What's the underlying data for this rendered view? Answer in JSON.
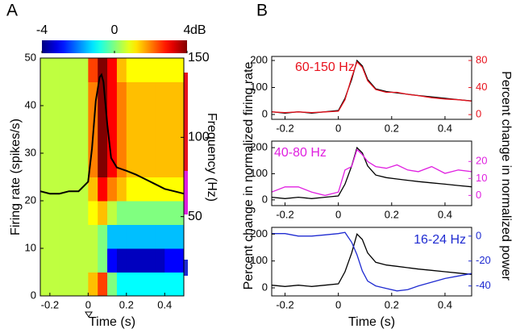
{
  "chart_data": [
    {
      "type": "heatmap",
      "panel": "A",
      "xlabel": "Time (s)",
      "ylabel": "Firing rate (spikes/s)",
      "y2label": "Frequency (Hz)",
      "xlim": [
        -0.25,
        0.5
      ],
      "xticks": [
        -0.2,
        0,
        0.2,
        0.4
      ],
      "ylim": [
        0,
        50
      ],
      "yticks": [
        0,
        10,
        20,
        30,
        40,
        50
      ],
      "y2lim": [
        0,
        150
      ],
      "y2ticks": [
        50,
        100,
        150
      ],
      "colormap": "jet",
      "heatmap": {
        "x_edges": [
          -0.25,
          -0.2,
          -0.15,
          -0.1,
          -0.05,
          0,
          0.05,
          0.1,
          0.15,
          0.2,
          0.25,
          0.3,
          0.35,
          0.4,
          0.45,
          0.5
        ],
        "y_edges": [
          0,
          15,
          30,
          45,
          60,
          75,
          90,
          105,
          120,
          135,
          150
        ],
        "values": [
          [
            0.5,
            0.5,
            0.5,
            0.5,
            0.5,
            1.5,
            2.5,
            0,
            -1,
            -1,
            -1,
            -1,
            -1,
            -1,
            -1
          ],
          [
            0.5,
            0.5,
            0.5,
            0.5,
            0.5,
            0.5,
            0,
            -3,
            -3.5,
            -3.5,
            -3.5,
            -3.5,
            -3.5,
            -3,
            -3
          ],
          [
            0.5,
            0.5,
            0.5,
            0.5,
            0.5,
            0.5,
            0,
            -1.5,
            -1.5,
            -1.5,
            -1.5,
            -1.5,
            -1.5,
            -1.5,
            -1.5
          ],
          [
            0.5,
            0.5,
            0.5,
            0.5,
            0.5,
            1,
            1.5,
            0.5,
            0,
            0,
            0,
            0,
            0,
            0,
            0
          ],
          [
            0.5,
            0.5,
            0.5,
            0.5,
            0.5,
            1.5,
            3,
            2,
            1.5,
            1,
            1,
            1,
            1,
            1,
            1
          ],
          [
            0.5,
            0.5,
            0.5,
            0.5,
            0.5,
            2,
            4,
            3,
            2,
            1.5,
            1.5,
            1.5,
            1.5,
            1.5,
            1.5
          ],
          [
            0.5,
            0.5,
            0.5,
            0.5,
            0.5,
            2,
            4,
            3,
            2,
            1.5,
            1.5,
            1.5,
            1.5,
            1.5,
            1.5
          ],
          [
            0.5,
            0.5,
            0.5,
            0.5,
            0.5,
            2,
            4,
            3,
            2,
            1.5,
            1.5,
            1.5,
            1.5,
            1.5,
            1.5
          ],
          [
            0.5,
            0.5,
            0.5,
            0.5,
            0.5,
            2,
            4,
            3,
            2,
            1.5,
            1.5,
            1.5,
            1.5,
            1.5,
            1.5
          ],
          [
            0.5,
            0.5,
            0.5,
            0.5,
            0.5,
            2.5,
            4,
            3,
            1.5,
            1,
            1,
            1,
            1,
            1,
            1
          ]
        ],
        "clim": [
          -4,
          4
        ],
        "cticks": [
          -4,
          0,
          4
        ],
        "clabel": "dB"
      },
      "series": [
        {
          "color": "#000000",
          "x": [
            -0.25,
            -0.2,
            -0.15,
            -0.1,
            -0.05,
            0,
            0.02,
            0.04,
            0.06,
            0.07,
            0.08,
            0.1,
            0.12,
            0.15,
            0.2,
            0.25,
            0.3,
            0.35,
            0.4,
            0.45,
            0.5
          ],
          "values": [
            22,
            21.5,
            21.5,
            22,
            22,
            24,
            31,
            41,
            46,
            46.5,
            45,
            36,
            29,
            27,
            26.3,
            25.5,
            24.5,
            23.5,
            22.5,
            22,
            21.5
          ]
        }
      ]
    },
    {
      "type": "line",
      "panel": "B",
      "ylabel": "Percent change in normalized firing rate",
      "y2label": "Percent change in normalized power",
      "annotation": "60-150 Hz",
      "xlim": [
        -0.25,
        0.5
      ],
      "xticks": [
        -0.2,
        0,
        0.2,
        0.4
      ],
      "ylim": [
        -18,
        215
      ],
      "yticks": [
        0,
        100,
        200
      ],
      "y2lim": [
        -7,
        86
      ],
      "y2ticks": [
        0,
        40,
        80
      ],
      "x": [
        -0.25,
        -0.2,
        -0.15,
        -0.1,
        -0.05,
        0,
        0.025,
        0.05,
        0.07,
        0.09,
        0.11,
        0.14,
        0.18,
        0.22,
        0.26,
        0.3,
        0.35,
        0.4,
        0.45,
        0.5
      ],
      "series": [
        {
          "color": "#000000",
          "values": [
            10,
            5,
            10,
            5,
            10,
            15,
            60,
            130,
            200,
            180,
            130,
            95,
            85,
            80,
            75,
            70,
            65,
            60,
            55,
            50
          ]
        },
        {
          "color": "#e8121d",
          "axis": "y2",
          "values": [
            4,
            3,
            4,
            3,
            4,
            5,
            22,
            55,
            78,
            70,
            50,
            37,
            33,
            33,
            30,
            28,
            25,
            23,
            22,
            20
          ]
        }
      ]
    },
    {
      "type": "line",
      "annotation": "40-80 Hz",
      "xlim": [
        -0.25,
        0.5
      ],
      "xticks": [
        -0.2,
        0,
        0.2,
        0.4
      ],
      "ylim": [
        -22,
        225
      ],
      "yticks": [
        0,
        100,
        200
      ],
      "y2lim": [
        -6,
        32
      ],
      "y2ticks": [
        0,
        10,
        20
      ],
      "x": [
        -0.25,
        -0.2,
        -0.15,
        -0.1,
        -0.05,
        0,
        0.025,
        0.05,
        0.07,
        0.09,
        0.11,
        0.14,
        0.18,
        0.22,
        0.26,
        0.3,
        0.35,
        0.4,
        0.45,
        0.5
      ],
      "series": [
        {
          "color": "#000000",
          "values": [
            10,
            5,
            10,
            5,
            10,
            15,
            60,
            130,
            200,
            180,
            130,
            95,
            85,
            80,
            75,
            70,
            65,
            60,
            55,
            50
          ]
        },
        {
          "color": "#e020e0",
          "axis": "y2",
          "values": [
            2,
            5,
            5,
            2,
            0,
            2,
            15,
            17,
            27,
            24,
            20,
            17,
            16,
            18,
            15,
            14,
            17,
            13,
            15,
            14
          ]
        }
      ]
    },
    {
      "type": "line",
      "annotation": "16-24 Hz",
      "xlabel": "Time (s)",
      "xlim": [
        -0.25,
        0.5
      ],
      "xticks": [
        -0.2,
        0,
        0.2,
        0.4
      ],
      "ylim": [
        -30,
        225
      ],
      "yticks": [
        0,
        100,
        200
      ],
      "y2lim": [
        -48,
        7
      ],
      "y2ticks": [
        -40,
        -20,
        0
      ],
      "x": [
        -0.25,
        -0.2,
        -0.15,
        -0.1,
        -0.05,
        0,
        0.025,
        0.05,
        0.07,
        0.09,
        0.11,
        0.14,
        0.18,
        0.22,
        0.26,
        0.3,
        0.35,
        0.4,
        0.45,
        0.5
      ],
      "series": [
        {
          "color": "#000000",
          "values": [
            10,
            5,
            10,
            5,
            10,
            15,
            60,
            130,
            200,
            180,
            130,
            95,
            85,
            80,
            75,
            70,
            65,
            60,
            55,
            50
          ]
        },
        {
          "color": "#1f2bd1",
          "axis": "y2",
          "values": [
            2,
            2,
            0,
            0,
            1,
            2,
            3,
            -5,
            -15,
            -28,
            -36,
            -40,
            -42,
            -44,
            -43,
            -40,
            -37,
            -34,
            -32,
            -30
          ]
        }
      ]
    }
  ]
}
